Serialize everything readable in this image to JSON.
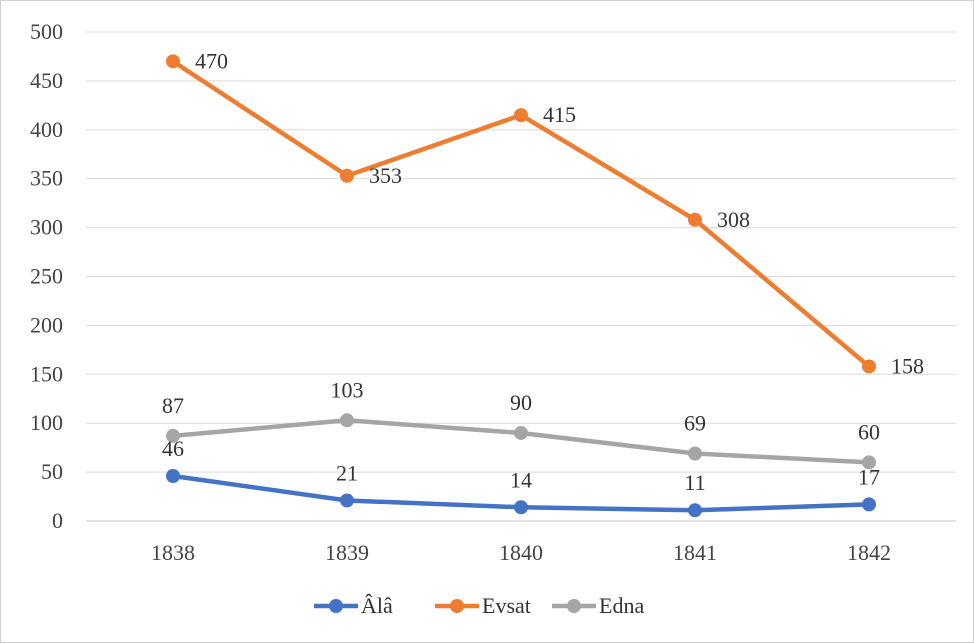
{
  "chart_data": {
    "type": "line",
    "title": "",
    "xlabel": "",
    "ylabel": "",
    "categories": [
      "1838",
      "1839",
      "1840",
      "1841",
      "1842"
    ],
    "ylim": [
      0,
      500
    ],
    "yticks": [
      0,
      50,
      100,
      150,
      200,
      250,
      300,
      350,
      400,
      450,
      500
    ],
    "grid": true,
    "legend_position": "bottom",
    "series": [
      {
        "name": "Âlâ",
        "color": "#4472C4",
        "values": [
          46,
          21,
          14,
          11,
          17
        ]
      },
      {
        "name": "Evsat",
        "color": "#ED7D31",
        "values": [
          470,
          353,
          415,
          308,
          158
        ]
      },
      {
        "name": "Edna",
        "color": "#A5A5A5",
        "values": [
          87,
          103,
          90,
          69,
          60
        ]
      }
    ]
  }
}
